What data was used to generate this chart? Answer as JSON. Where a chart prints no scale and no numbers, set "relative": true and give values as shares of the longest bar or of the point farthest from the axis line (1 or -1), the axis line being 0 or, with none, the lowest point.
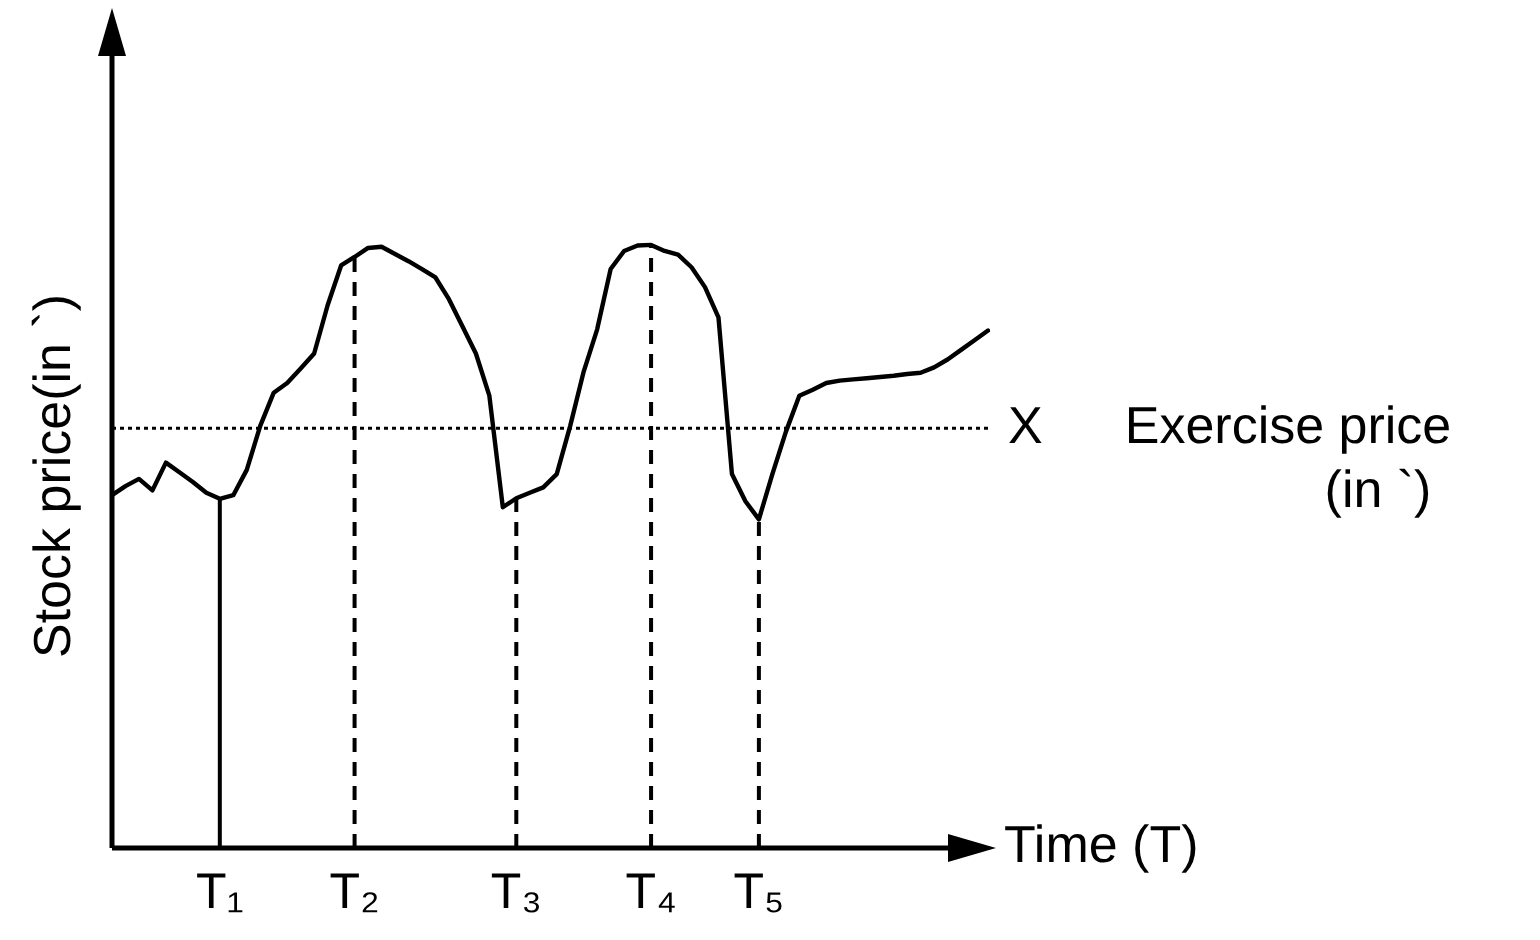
{
  "chart_data": {
    "type": "line",
    "relative": true,
    "xlabel": "Time (T)",
    "ylabel": "Stock price(in `)",
    "categories": [
      null,
      null,
      null,
      null,
      null,
      null,
      null,
      null,
      "T₁",
      null,
      null,
      null,
      null,
      null,
      null,
      null,
      null,
      null,
      "T₂",
      null,
      null,
      null,
      null,
      null,
      null,
      null,
      null,
      null,
      null,
      null,
      "T₃",
      null,
      null,
      null,
      null,
      null,
      null,
      null,
      null,
      null,
      "T₄",
      null,
      null,
      null,
      null,
      null,
      null,
      null,
      "T₅",
      null,
      null,
      null,
      null,
      null,
      null,
      null,
      null,
      null,
      null,
      null,
      null,
      null,
      null,
      null,
      null,
      null
    ],
    "series": [
      {
        "color": "#000000",
        "values": [
          0.585,
          0.6,
          0.612,
          0.593,
          0.639,
          0.623,
          0.607,
          0.589,
          0.579,
          0.585,
          0.627,
          0.7,
          0.755,
          0.771,
          0.795,
          0.82,
          0.9,
          0.966,
          0.98,
          0.995,
          0.997,
          0.985,
          0.973,
          0.96,
          0.946,
          0.91,
          0.865,
          0.82,
          0.75,
          0.565,
          0.58,
          0.589,
          0.598,
          0.62,
          0.7,
          0.79,
          0.86,
          0.96,
          0.99,
          0.999,
          1.0,
          0.99,
          0.984,
          0.963,
          0.93,
          0.88,
          0.62,
          0.575,
          0.545,
          0.62,
          0.69,
          0.75,
          0.76,
          0.771,
          0.775,
          0.777,
          0.779,
          0.781,
          0.783,
          0.786,
          0.788,
          0.797,
          0.81,
          0.826,
          0.842,
          0.858
        ]
      }
    ],
    "ref_lines": [
      {
        "axis": "y",
        "value": 0.696,
        "label": "X",
        "line_style": "dotted"
      },
      {
        "axis": "x",
        "value": "T₁",
        "line_style": "solid"
      },
      {
        "axis": "x",
        "value": "T₂",
        "line_style": "dashed"
      },
      {
        "axis": "x",
        "value": "T₃",
        "line_style": "dashed"
      },
      {
        "axis": "x",
        "value": "T₄",
        "line_style": "dashed"
      },
      {
        "axis": "x",
        "value": "T₅",
        "line_style": "dashed"
      }
    ],
    "annotations": [
      "Exercise price (in `)"
    ],
    "grid": false,
    "legend": false,
    "marker": "none",
    "line_style": "solid"
  }
}
